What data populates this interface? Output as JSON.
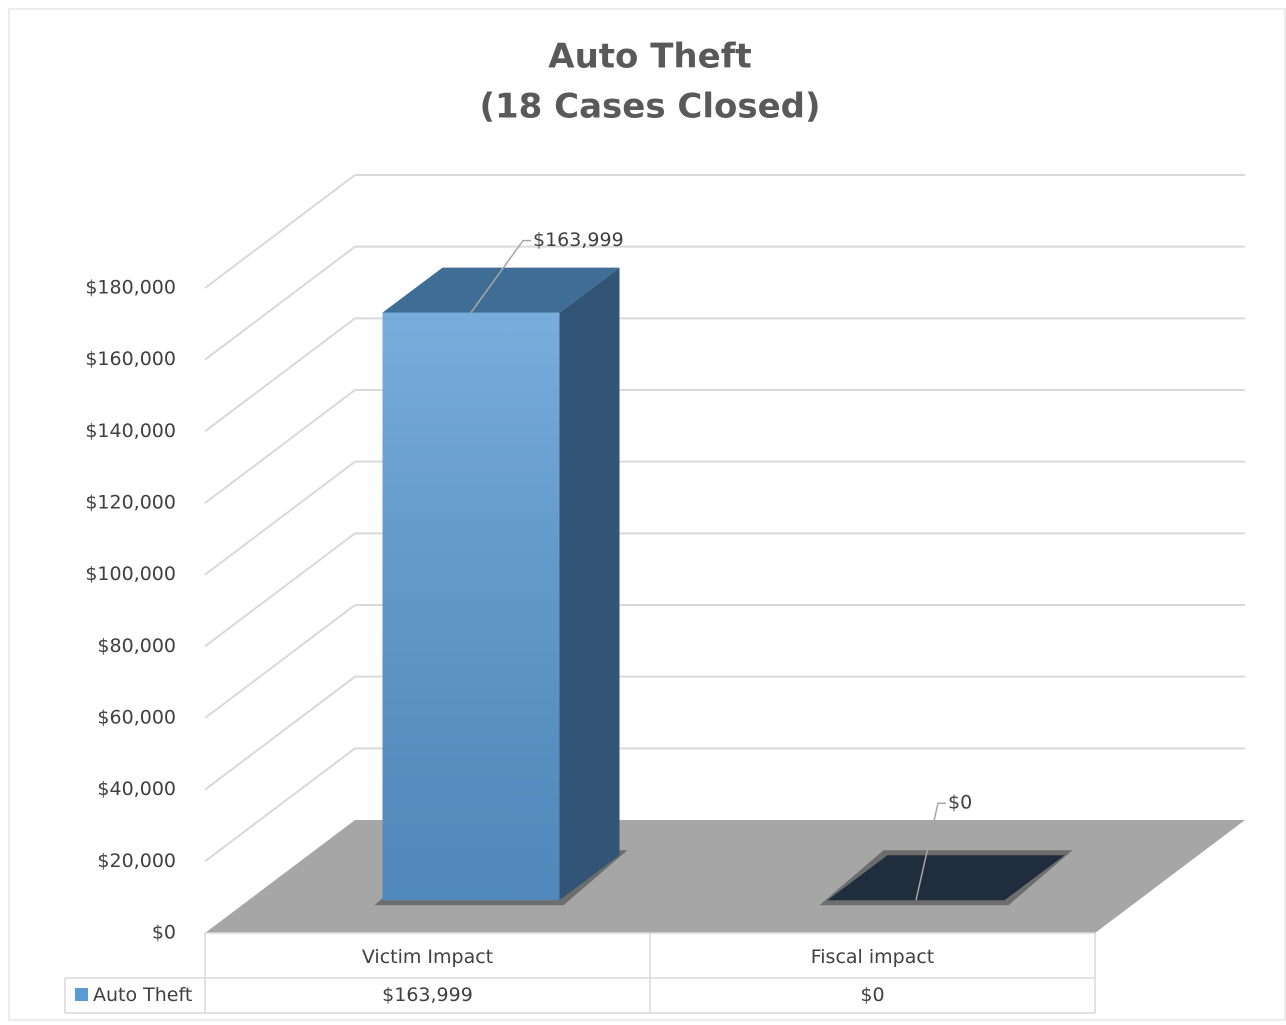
{
  "chart_data": {
    "type": "bar3d",
    "title": "Auto Theft",
    "subtitle": "(18 Cases Closed)",
    "categories": [
      "Victim Impact",
      "Fiscal impact"
    ],
    "series": [
      {
        "name": "Auto Theft",
        "color": "#5b9bd5",
        "values": [
          163999,
          0
        ],
        "value_labels": [
          "$163,999",
          "$0"
        ]
      }
    ],
    "ylim": [
      0,
      180000
    ],
    "yticks": [
      {
        "value": 0,
        "label": "$0"
      },
      {
        "value": 20000,
        "label": "$20,000"
      },
      {
        "value": 40000,
        "label": "$40,000"
      },
      {
        "value": 60000,
        "label": "$60,000"
      },
      {
        "value": 80000,
        "label": "$80,000"
      },
      {
        "value": 100000,
        "label": "$100,000"
      },
      {
        "value": 120000,
        "label": "$120,000"
      },
      {
        "value": 140000,
        "label": "$140,000"
      },
      {
        "value": 160000,
        "label": "$160,000"
      },
      {
        "value": 180000,
        "label": "$180,000"
      }
    ],
    "grid": true,
    "data_table": true
  }
}
